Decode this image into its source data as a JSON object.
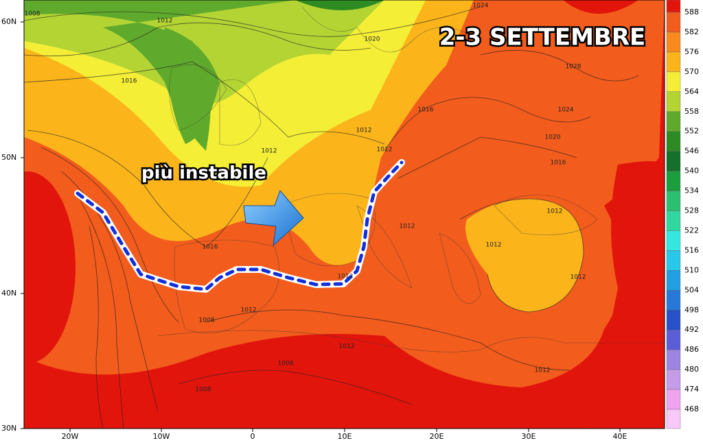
{
  "title": "2-3 SETTEMBRE",
  "annotation": "più instabile",
  "legend": {
    "levels": [
      588,
      582,
      576,
      570,
      564,
      558,
      552,
      546,
      540,
      534,
      528,
      522,
      516,
      510,
      504,
      498,
      492,
      486,
      480,
      474,
      468
    ],
    "colors": [
      "#e2150c",
      "#f25c1c",
      "#f88a1e",
      "#fbb51b",
      "#f4ee36",
      "#b4d434",
      "#5faa2c",
      "#2e8a22",
      "#14702a",
      "#1a9e3e",
      "#2bc070",
      "#30d8a0",
      "#34e8e0",
      "#28c8e8",
      "#20a0e0",
      "#2878d8",
      "#2850c8",
      "#5c5ed8",
      "#9c84e0",
      "#c49ce8",
      "#f0a4f0",
      "#f8c8f8"
    ]
  },
  "lat_labels": [
    "60N",
    "50N",
    "40N",
    "30N"
  ],
  "lon_labels": [
    "20W",
    "10W",
    "0",
    "10E",
    "20E",
    "30E",
    "40E"
  ],
  "isobar_labels": [
    "1008",
    "1012",
    "1016",
    "1016",
    "1012",
    "1012",
    "1012",
    "1020",
    "1024",
    "1028",
    "1016",
    "1024",
    "1020",
    "1016",
    "1012",
    "1012",
    "1012",
    "1012",
    "1012",
    "1008",
    "1012",
    "1008",
    "1008",
    "1012",
    "1012"
  ]
}
